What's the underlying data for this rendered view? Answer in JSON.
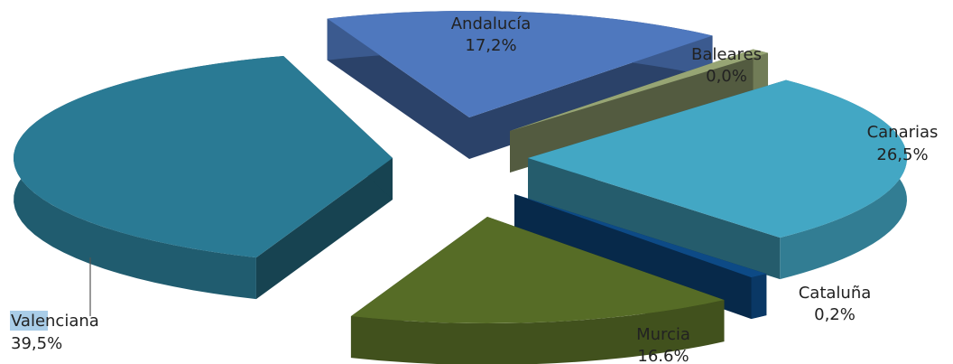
{
  "chart_data": {
    "type": "pie",
    "style": "3d-exploded",
    "title": "",
    "slices": [
      {
        "name": "Andalucía",
        "value_label": "17,2%",
        "value": 17.2,
        "color": "#4f78be"
      },
      {
        "name": "Baleares",
        "value_label": "0,0%",
        "value": 0.0,
        "color": "#97a574"
      },
      {
        "name": "Canarias",
        "value_label": "26,5%",
        "value": 26.5,
        "color": "#43a7c4"
      },
      {
        "name": "Cataluña",
        "value_label": "0,2%",
        "value": 0.2,
        "color": "#0d4a86"
      },
      {
        "name": "Murcia",
        "value_label": "16.6%",
        "value": 16.6,
        "color": "#566c26"
      },
      {
        "name": "Valenciana",
        "value_label": "39,5%",
        "value": 39.5,
        "color": "#2a7a94"
      }
    ]
  }
}
